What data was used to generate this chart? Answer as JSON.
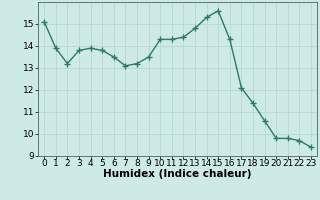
{
  "x": [
    0,
    1,
    2,
    3,
    4,
    5,
    6,
    7,
    8,
    9,
    10,
    11,
    12,
    13,
    14,
    15,
    16,
    17,
    18,
    19,
    20,
    21,
    22,
    23
  ],
  "y": [
    15.1,
    13.9,
    13.2,
    13.8,
    13.9,
    13.8,
    13.5,
    13.1,
    13.2,
    13.5,
    14.3,
    14.3,
    14.4,
    14.8,
    15.3,
    15.6,
    14.3,
    12.1,
    11.4,
    10.6,
    9.8,
    9.8,
    9.7,
    9.4
  ],
  "line_color": "#2d7a6a",
  "marker": "+",
  "marker_size": 4,
  "bg_color": "#ceeae6",
  "grid_color": "#b8d8d4",
  "xlabel": "Humidex (Indice chaleur)",
  "xlim": [
    -0.5,
    23.5
  ],
  "ylim": [
    9,
    16
  ],
  "yticks": [
    9,
    10,
    11,
    12,
    13,
    14,
    15
  ],
  "xticks": [
    0,
    1,
    2,
    3,
    4,
    5,
    6,
    7,
    8,
    9,
    10,
    11,
    12,
    13,
    14,
    15,
    16,
    17,
    18,
    19,
    20,
    21,
    22,
    23
  ],
  "tick_fontsize": 6.5,
  "xlabel_fontsize": 7.5,
  "line_width": 1.0
}
